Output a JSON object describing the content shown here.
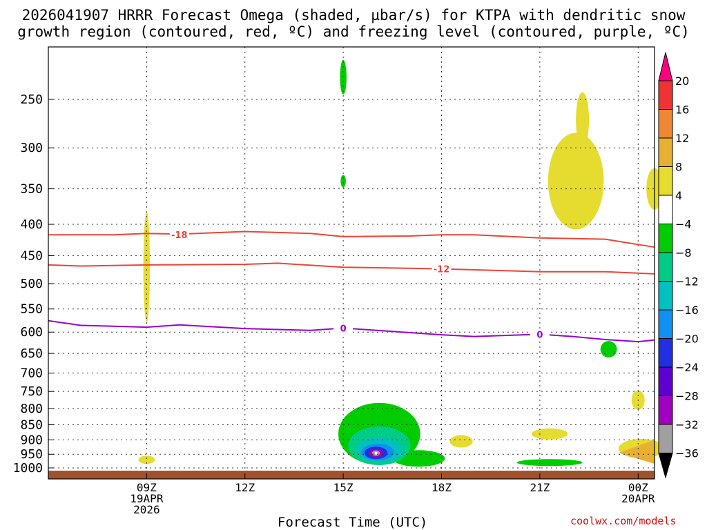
{
  "title": {
    "line1": "2026041907 HRRR Forecast Omega (shaded, µbar/s) for KTPA with dendritic snow",
    "line2": "growth region (contoured, red, ºC) and freezing level (contoured, purple, ºC)"
  },
  "xlabel": "Forecast Time (UTC)",
  "credit": "coolwx.com/models",
  "colors": {
    "red_contour": "#ee4433",
    "purple_contour": "#9900cc",
    "ground": "#a0522d",
    "grid": "#333333"
  },
  "chart_data": {
    "type": "time-height cross-section",
    "x_axis": {
      "unit": "hour offset from 09Z 19APR",
      "range": [
        -3,
        15.5
      ],
      "ticks": [
        {
          "x": 0,
          "lines": [
            "09Z",
            "19APR",
            "2026"
          ]
        },
        {
          "x": 3,
          "lines": [
            "12Z"
          ]
        },
        {
          "x": 6,
          "lines": [
            "15Z"
          ]
        },
        {
          "x": 9,
          "lines": [
            "18Z"
          ]
        },
        {
          "x": 12,
          "lines": [
            "21Z"
          ]
        },
        {
          "x": 15,
          "lines": [
            "00Z",
            "20APR"
          ]
        }
      ]
    },
    "y_axis": {
      "unit": "hPa",
      "log_scale": true,
      "range": [
        200,
        1020
      ],
      "ticks": [
        250,
        300,
        350,
        400,
        450,
        500,
        550,
        600,
        650,
        700,
        750,
        800,
        850,
        900,
        950,
        1000
      ]
    },
    "grid": true,
    "contours": [
      {
        "label": "-18",
        "color": "#ee4433",
        "points": [
          [
            -3,
            416
          ],
          [
            -1,
            416
          ],
          [
            0,
            414
          ],
          [
            1,
            415
          ],
          [
            3,
            411
          ],
          [
            5,
            414
          ],
          [
            6,
            419
          ],
          [
            8,
            418
          ],
          [
            9,
            416
          ],
          [
            10,
            416
          ],
          [
            12,
            421
          ],
          [
            14,
            423
          ],
          [
            15.5,
            436
          ]
        ],
        "label_at": [
          1,
          416
        ]
      },
      {
        "label": "-12",
        "color": "#ee4433",
        "points": [
          [
            -3,
            466
          ],
          [
            -2,
            468
          ],
          [
            0,
            466
          ],
          [
            3,
            465
          ],
          [
            4,
            463
          ],
          [
            6,
            470
          ],
          [
            8,
            472
          ],
          [
            9,
            473
          ],
          [
            12,
            478
          ],
          [
            14,
            478
          ],
          [
            15.5,
            482
          ]
        ],
        "label_at": [
          9,
          473
        ]
      },
      {
        "label": "0",
        "color": "#9900cc",
        "points": [
          [
            -3,
            575
          ],
          [
            -2,
            585
          ],
          [
            -1,
            587
          ],
          [
            0,
            589
          ],
          [
            1,
            584
          ],
          [
            3,
            592
          ],
          [
            5,
            596
          ],
          [
            6,
            591
          ],
          [
            8,
            601
          ],
          [
            9,
            606
          ],
          [
            10,
            610
          ],
          [
            12,
            605
          ],
          [
            13,
            610
          ],
          [
            14,
            617
          ],
          [
            15,
            622
          ],
          [
            15.5,
            618
          ]
        ],
        "label_at": [
          [
            6,
            591
          ],
          [
            12,
            605
          ]
        ]
      }
    ],
    "omega_shading": {
      "legend_levels": [
        "20",
        "16",
        "12",
        "8",
        "4",
        "-4",
        "-8",
        "-12",
        "-16",
        "-20",
        "-24",
        "-28",
        "-32",
        "-36"
      ],
      "legend_colors": [
        "#ff0080",
        "#ee3333",
        "#ee8833",
        "#e8b030",
        "#e6dc30",
        "#ffffff",
        "#00cc00",
        "#00cc88",
        "#00c0c0",
        "#1090f0",
        "#2030e0",
        "#6000d0",
        "#a000c0",
        "#a0a0a0",
        "#000000"
      ],
      "features": [
        {
          "name": "upward motion core",
          "center": [
            7,
            940
          ],
          "min_value": -36
        },
        {
          "name": "sinking area",
          "center": [
            13,
            340
          ],
          "max_value": 8
        }
      ]
    }
  }
}
